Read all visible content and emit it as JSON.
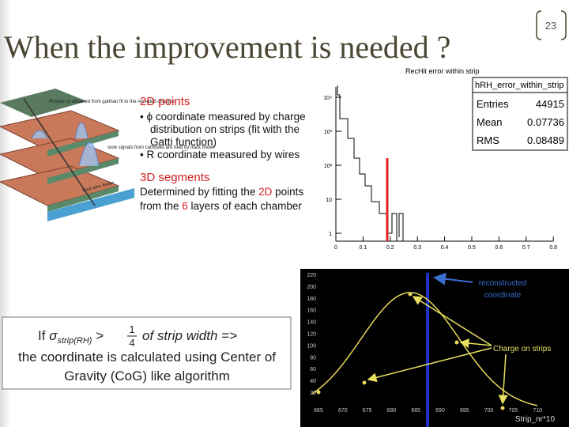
{
  "slide_number": "23",
  "title": "When the improvement is needed ?",
  "diagram": {
    "labels": [
      "Position is obtained from gatthan fit to the recorded charges",
      "slow signals from cathodes are held by track finder",
      "Fast wire finder"
    ]
  },
  "bullets": {
    "heading1_num": "2D",
    "heading1_rest": " points",
    "item1_symbol": "ϕ",
    "item1_lines": [
      "coordinate measured by charge",
      "distribution on strips (fit with the",
      "Gatti function)"
    ],
    "item2": "R coordinate measured by wires",
    "heading2_num": "3D",
    "heading2_rest": " segments",
    "text_lines_a": [
      "Determined by fitting the ",
      "2D",
      " points"
    ],
    "text_lines_b": [
      "from the ",
      "6",
      " layers of each chamber"
    ]
  },
  "histogram": {
    "title": "RecHit error within strip",
    "stats_name": "hRH_error_within_strip",
    "stats_rows": [
      [
        "Entries",
        "44915"
      ],
      [
        "Mean",
        "0.07736"
      ],
      [
        "RMS",
        "0.08489"
      ]
    ],
    "xticks": [
      "0",
      "0.1",
      "0.2",
      "0.3",
      "0.4",
      "0.5",
      "0.6",
      "0.7",
      "0.8"
    ],
    "yticks": [
      "1",
      "10",
      "10²",
      "10³",
      "10⁴"
    ]
  },
  "profile": {
    "yticks": [
      "20",
      "40",
      "60",
      "80",
      "100",
      "120",
      "140",
      "160",
      "180",
      "200",
      "220"
    ],
    "xticks": [
      "665",
      "670",
      "675",
      "680",
      "685",
      "690",
      "695",
      "700",
      "705",
      "710"
    ],
    "xlabel": "Strip_nr*10",
    "annotation1": [
      "reconstructed",
      "coordinate"
    ],
    "annotation2": "Charge on strips"
  },
  "note": {
    "if": "If",
    "sigma": "σ",
    "subscript": "strip(RH)",
    "gt": ">",
    "numerator": "1",
    "denominator": "4",
    "rest": "of strip width =>",
    "line2": "the coordinate is calculated using Center of",
    "line3": "Gravity (CoG) like algorithm"
  }
}
